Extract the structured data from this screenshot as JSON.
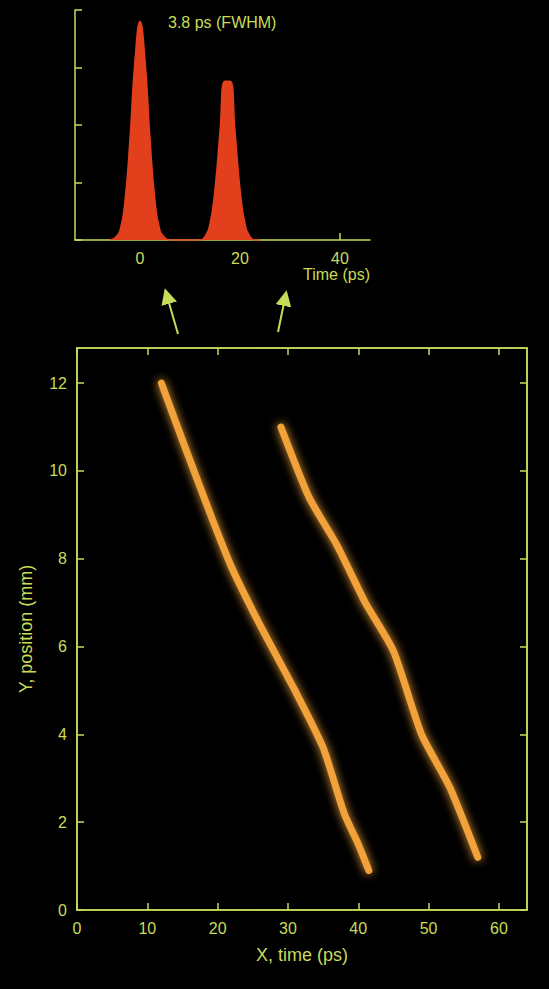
{
  "chart_data": [
    {
      "type": "line",
      "x": [
        -6,
        -5,
        -4,
        -3,
        -2,
        -1,
        0,
        1,
        2,
        3,
        4,
        5,
        6,
        7,
        8,
        9,
        10,
        11,
        12,
        13,
        14,
        15,
        16,
        17,
        18,
        19,
        20,
        21,
        22,
        23,
        24
      ],
      "values": [
        0,
        0.01,
        0.04,
        0.17,
        0.44,
        0.78,
        0.95,
        0.78,
        0.44,
        0.17,
        0.04,
        0.01,
        0,
        0,
        0,
        0,
        0,
        0,
        0,
        0.015,
        0.07,
        0.22,
        0.47,
        0.69,
        0.69,
        0.47,
        0.22,
        0.07,
        0.015,
        0,
        0
      ],
      "color": "#e2401c",
      "xlabel": "Time (ps)",
      "xlim": [
        -13,
        46
      ],
      "xticks": [
        0,
        20,
        40
      ],
      "ylim": [
        0,
        1
      ],
      "yticks": [
        0,
        0.25,
        0.5,
        0.75,
        1
      ],
      "tick_labels": "x",
      "annotations": [
        "3.8 ps (FWHM)"
      ],
      "grid": false
    },
    {
      "type": "line",
      "xlabel": "X, time (ps)",
      "ylabel": "Y, position (mm)",
      "series": [
        {
          "x": [
            12,
            15,
            19,
            22,
            26,
            31,
            35,
            38,
            40,
            41.5
          ],
          "values": [
            12,
            10.7,
            9,
            7.8,
            6.5,
            5,
            3.7,
            2.2,
            1.5,
            0.9
          ],
          "color": "#f2a23a"
        },
        {
          "x": [
            29,
            33,
            37,
            41,
            45,
            49,
            53,
            57
          ],
          "values": [
            11,
            9.4,
            8.3,
            7,
            5.9,
            4,
            2.8,
            1.2
          ],
          "color": "#f2a23a"
        }
      ],
      "xlim": [
        0,
        64
      ],
      "xticks": [
        0,
        10,
        20,
        30,
        40,
        50,
        60
      ],
      "ylim": [
        0,
        12.8
      ],
      "yticks": [
        0,
        2,
        4,
        6,
        8,
        10,
        12
      ],
      "grid": false
    }
  ]
}
